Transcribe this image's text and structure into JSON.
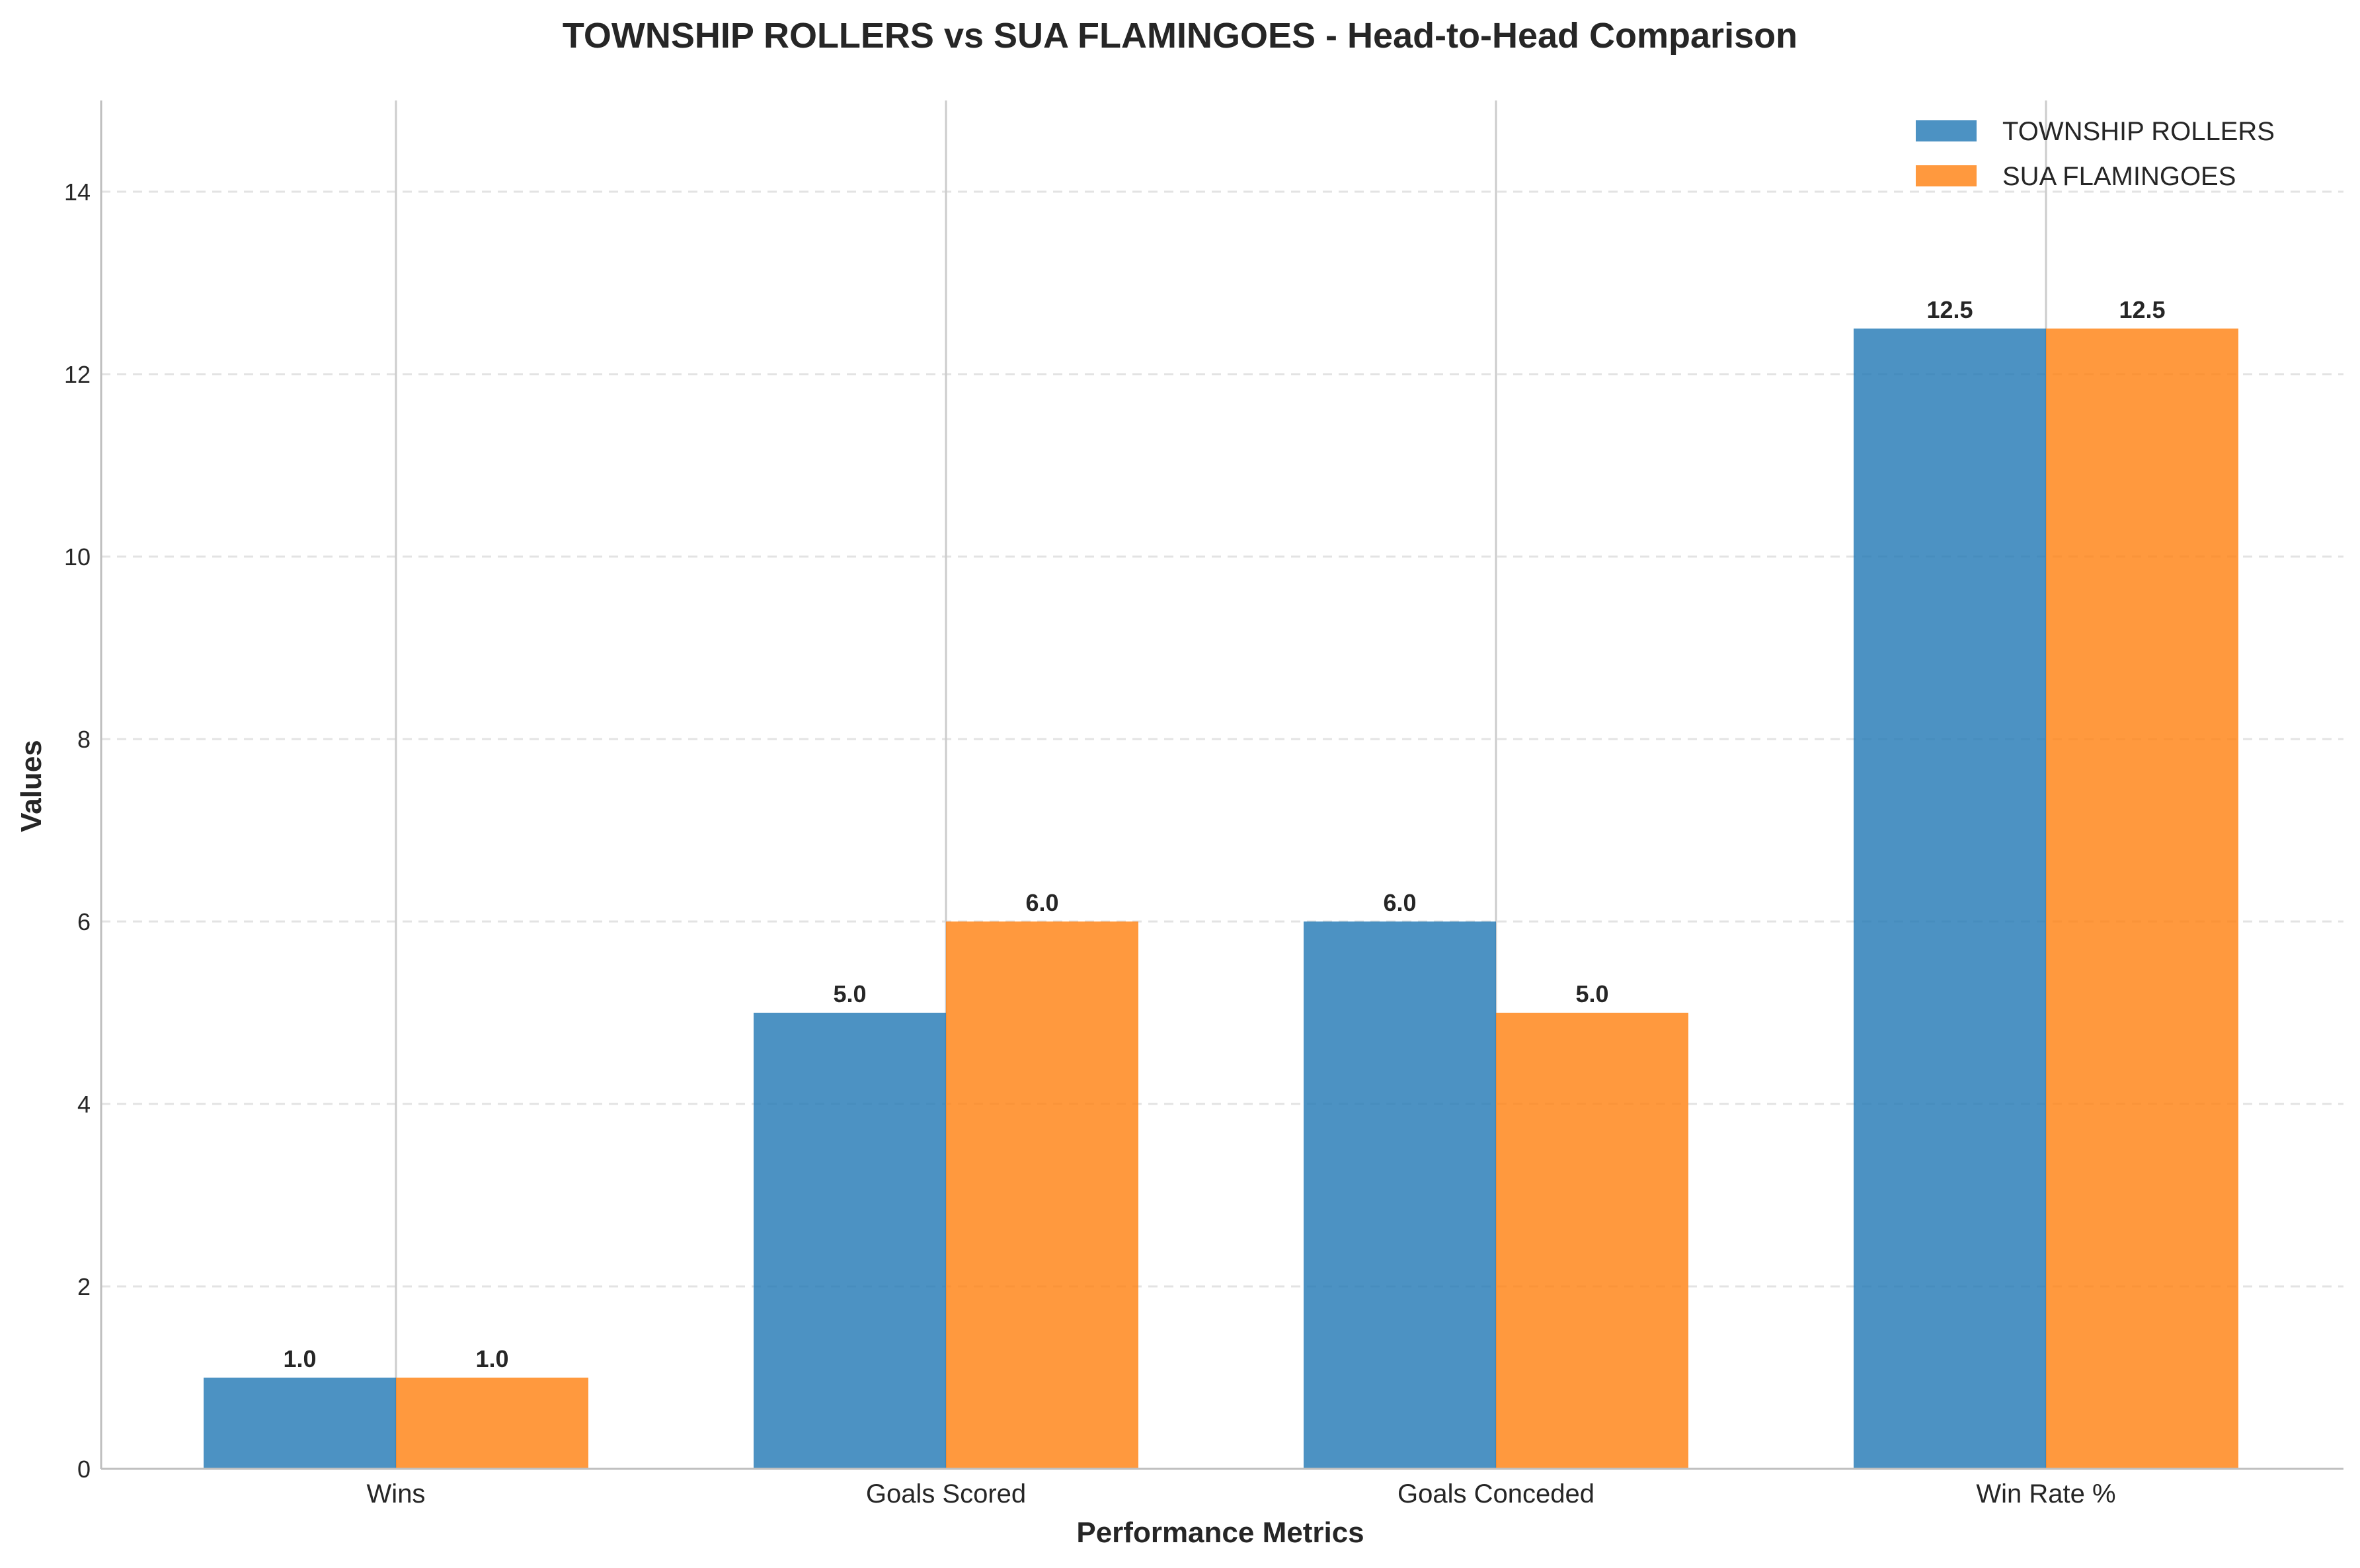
{
  "chart_data": {
    "type": "bar",
    "title": "TOWNSHIP ROLLERS vs SUA FLAMINGOES - Head-to-Head Comparison",
    "xlabel": "Performance Metrics",
    "ylabel": "Values",
    "categories": [
      "Wins",
      "Goals Scored",
      "Goals Conceded",
      "Win Rate %"
    ],
    "series": [
      {
        "name": "TOWNSHIP ROLLERS",
        "values": [
          1.0,
          5.0,
          6.0,
          12.5
        ],
        "color": "#1f77b4",
        "labels": [
          "1.0",
          "5.0",
          "6.0",
          "12.5"
        ]
      },
      {
        "name": "SUA FLAMINGOES",
        "values": [
          1.0,
          6.0,
          5.0,
          12.5
        ],
        "color": "#ff7f0e",
        "labels": [
          "1.0",
          "6.0",
          "5.0",
          "12.5"
        ]
      }
    ],
    "ylim": [
      0,
      15
    ],
    "yticks": [
      0,
      2,
      4,
      6,
      8,
      10,
      12,
      14
    ],
    "ytick_labels": [
      "0",
      "2",
      "4",
      "6",
      "8",
      "10",
      "12",
      "14"
    ],
    "grid": true,
    "legend_position": "top-right"
  }
}
